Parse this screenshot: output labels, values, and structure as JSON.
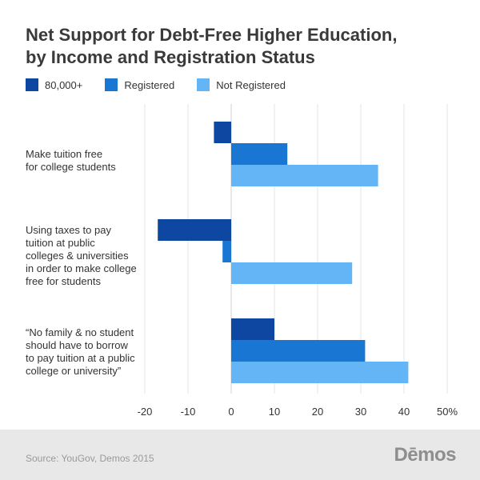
{
  "chart_data": {
    "type": "bar",
    "orientation": "horizontal",
    "title_lines": [
      "Net Support for Debt-Free Higher Education,",
      "by Income and Registration Status"
    ],
    "categories": [
      "Make tuition free\nfor college students",
      "Using taxes to pay\ntuition at public\ncolleges & universities\nin order to make college\nfree for students",
      "“No family & no student\nshould have to borrow\nto pay tuition at a public\ncollege or university”"
    ],
    "series": [
      {
        "name": "80,000+",
        "color": "#0d47a1",
        "values": [
          -4,
          -17,
          10
        ]
      },
      {
        "name": "Registered",
        "color": "#1976d2",
        "values": [
          13,
          -2,
          31
        ]
      },
      {
        "name": "Not Registered",
        "color": "#64b5f6",
        "values": [
          34,
          28,
          41
        ]
      }
    ],
    "xlim": [
      -20,
      50
    ],
    "xticks": [
      -20,
      -10,
      0,
      10,
      20,
      30,
      40,
      50
    ],
    "xtick_labels": [
      "-20",
      "-10",
      "0",
      "10",
      "20",
      "30",
      "40",
      "50%"
    ],
    "grid": true,
    "legend_position": "top-left"
  },
  "footer": {
    "source": "Source: YouGov, Demos 2015",
    "logo": "Dēmos"
  }
}
